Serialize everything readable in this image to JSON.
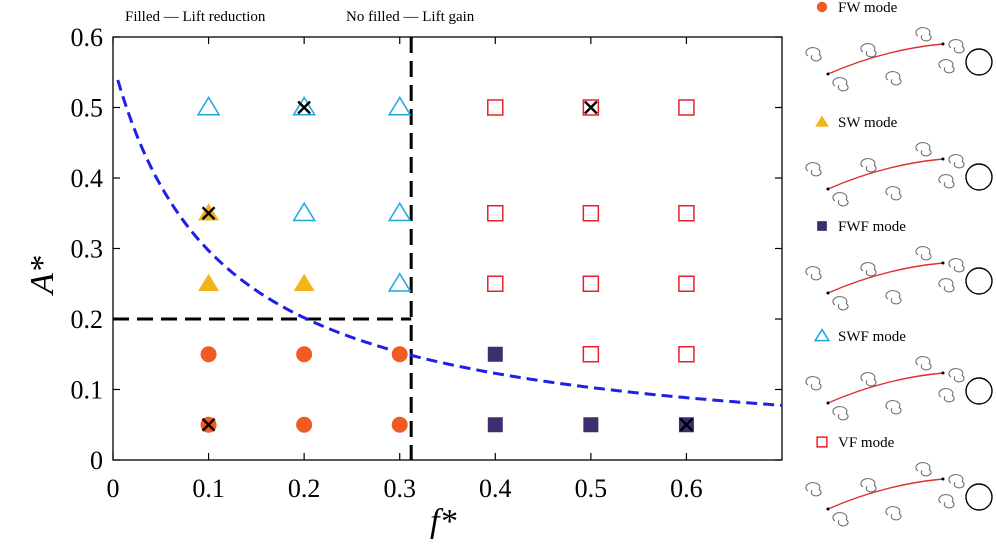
{
  "chart_data": {
    "type": "scatter",
    "title": "",
    "xlabel": "f*",
    "ylabel": "A*",
    "xlim": [
      0,
      0.7
    ],
    "ylim": [
      0,
      0.6
    ],
    "xticks": [
      "0",
      "0.1",
      "0.2",
      "0.3",
      "0.4",
      "0.5",
      "0.6"
    ],
    "yticks": [
      "0",
      "0.1",
      "0.2",
      "0.3",
      "0.4",
      "0.5",
      "0.6"
    ],
    "grid": false,
    "annotations": {
      "filled": "Filled — Lift reduction",
      "unfilled": "No filled — Lift gain"
    },
    "legend_position": "right-outside",
    "series": [
      {
        "name": "FW mode",
        "marker": "circle",
        "filled": true,
        "color": "#F15A22",
        "points": [
          [
            0.1,
            0.15
          ],
          [
            0.2,
            0.15
          ],
          [
            0.3,
            0.15
          ],
          [
            0.1,
            0.05
          ],
          [
            0.2,
            0.05
          ],
          [
            0.3,
            0.05
          ]
        ]
      },
      {
        "name": "SW mode",
        "marker": "triangle",
        "filled": true,
        "color": "#F2B418",
        "points": [
          [
            0.1,
            0.35
          ],
          [
            0.1,
            0.25
          ],
          [
            0.2,
            0.25
          ]
        ]
      },
      {
        "name": "FWF mode",
        "marker": "square",
        "filled": true,
        "color": "#3F2E6E",
        "points": [
          [
            0.4,
            0.15
          ],
          [
            0.4,
            0.05
          ],
          [
            0.5,
            0.05
          ],
          [
            0.6,
            0.05
          ]
        ]
      },
      {
        "name": "SWF mode",
        "marker": "triangle",
        "filled": false,
        "color": "#1AA6DF",
        "points": [
          [
            0.1,
            0.5
          ],
          [
            0.2,
            0.5
          ],
          [
            0.3,
            0.5
          ],
          [
            0.2,
            0.35
          ],
          [
            0.3,
            0.35
          ],
          [
            0.3,
            0.25
          ]
        ]
      },
      {
        "name": "VF mode",
        "marker": "square",
        "filled": false,
        "color": "#E8202A",
        "points": [
          [
            0.4,
            0.5
          ],
          [
            0.5,
            0.5
          ],
          [
            0.6,
            0.5
          ],
          [
            0.4,
            0.35
          ],
          [
            0.5,
            0.35
          ],
          [
            0.6,
            0.35
          ],
          [
            0.4,
            0.25
          ],
          [
            0.5,
            0.25
          ],
          [
            0.6,
            0.25
          ],
          [
            0.5,
            0.15
          ],
          [
            0.6,
            0.15
          ]
        ]
      }
    ],
    "cross_marks": [
      [
        0.2,
        0.5
      ],
      [
        0.5,
        0.5
      ],
      [
        0.1,
        0.35
      ],
      [
        0.1,
        0.05
      ],
      [
        0.6,
        0.05
      ]
    ],
    "reference_lines": [
      {
        "type": "vertical",
        "x": 0.312,
        "y_range": [
          0,
          0.6
        ],
        "style": "dashed",
        "color": "#000000"
      },
      {
        "type": "horizontal",
        "y": 0.2,
        "x_range": [
          0,
          0.312
        ],
        "style": "dashed",
        "color": "#000000"
      }
    ],
    "curve": {
      "style": "dashed",
      "color": "#1F1FE6",
      "formula": "A = k / (f + c)",
      "k": 0.0629,
      "c": 0.1117,
      "x_range": [
        0.005,
        0.7
      ]
    }
  }
}
